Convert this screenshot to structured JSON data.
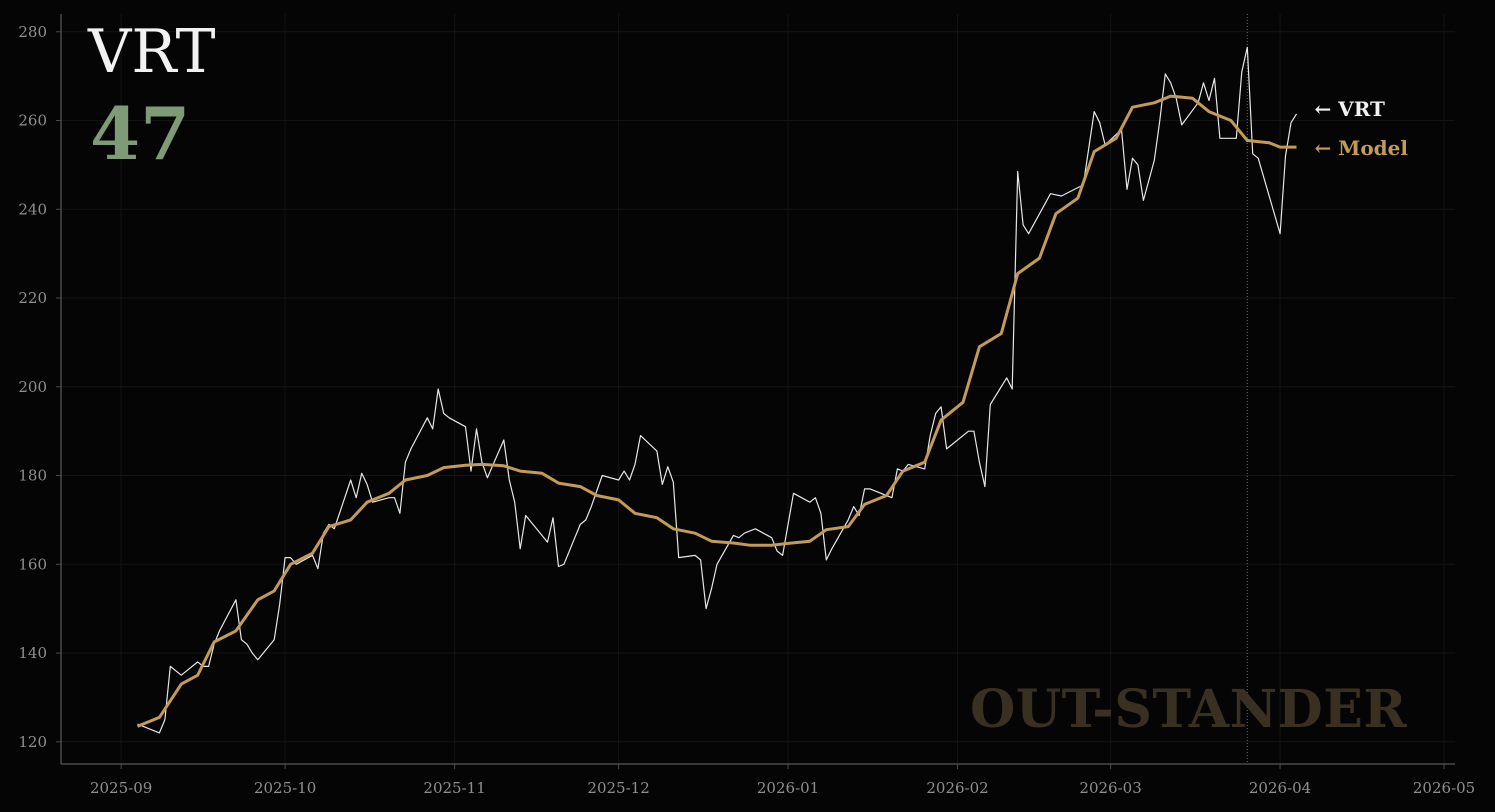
{
  "header": {
    "ticker": "VRT",
    "score": "47"
  },
  "watermark": "OUT-STANDER",
  "colors": {
    "background": "#050505",
    "price": "#e6e6e6",
    "model": "#c49a58",
    "score": "#7f9a76",
    "watermark": "#3a3022",
    "axis": "#4a4a4a",
    "grid": "#141414",
    "tick_text": "#8f8f8f"
  },
  "chart_data": {
    "type": "line",
    "title": "",
    "xlabel": "",
    "ylabel": "",
    "grid": true,
    "ylim": [
      115,
      284
    ],
    "xlim": [
      "2025-08-21",
      "2026-05-03"
    ],
    "x_ticks": [
      "2025-09",
      "2025-10",
      "2025-11",
      "2025-12",
      "2026-01",
      "2026-02",
      "2026-03",
      "2026-04",
      "2026-05"
    ],
    "y_ticks": [
      120,
      140,
      160,
      180,
      200,
      220,
      240,
      260,
      280
    ],
    "marker_date": "2026-03-26",
    "series": [
      {
        "name": "VRT",
        "label": "← VRT",
        "points": [
          [
            "2025-09-04",
            124
          ],
          [
            "2025-09-08",
            122
          ],
          [
            "2025-09-09",
            125
          ],
          [
            "2025-09-10",
            137
          ],
          [
            "2025-09-12",
            135
          ],
          [
            "2025-09-15",
            138
          ],
          [
            "2025-09-16",
            137
          ],
          [
            "2025-09-17",
            137
          ],
          [
            "2025-09-18",
            142
          ],
          [
            "2025-09-19",
            145
          ],
          [
            "2025-09-22",
            152
          ],
          [
            "2025-09-23",
            143
          ],
          [
            "2025-09-24",
            142
          ],
          [
            "2025-09-25",
            140
          ],
          [
            "2025-09-26",
            138.5
          ],
          [
            "2025-09-29",
            143
          ],
          [
            "2025-09-30",
            151
          ],
          [
            "2025-10-01",
            161.5
          ],
          [
            "2025-10-02",
            161.5
          ],
          [
            "2025-10-03",
            160
          ],
          [
            "2025-10-06",
            162
          ],
          [
            "2025-10-07",
            159
          ],
          [
            "2025-10-08",
            167
          ],
          [
            "2025-10-09",
            169
          ],
          [
            "2025-10-10",
            168
          ],
          [
            "2025-10-13",
            179
          ],
          [
            "2025-10-14",
            175
          ],
          [
            "2025-10-15",
            180.5
          ],
          [
            "2025-10-16",
            178
          ],
          [
            "2025-10-17",
            174
          ],
          [
            "2025-10-20",
            175
          ],
          [
            "2025-10-21",
            175
          ],
          [
            "2025-10-22",
            171.5
          ],
          [
            "2025-10-23",
            183
          ],
          [
            "2025-10-24",
            186
          ],
          [
            "2025-10-27",
            193
          ],
          [
            "2025-10-28",
            190.5
          ],
          [
            "2025-10-29",
            199.5
          ],
          [
            "2025-10-30",
            194
          ],
          [
            "2025-10-31",
            193
          ],
          [
            "2025-11-03",
            191
          ],
          [
            "2025-11-04",
            181
          ],
          [
            "2025-11-05",
            190.5
          ],
          [
            "2025-11-06",
            183
          ],
          [
            "2025-11-07",
            179.5
          ],
          [
            "2025-11-10",
            188
          ],
          [
            "2025-11-11",
            179
          ],
          [
            "2025-11-12",
            174
          ],
          [
            "2025-11-13",
            163.5
          ],
          [
            "2025-11-14",
            171
          ],
          [
            "2025-11-18",
            165
          ],
          [
            "2025-11-19",
            170.5
          ],
          [
            "2025-11-20",
            159.5
          ],
          [
            "2025-11-21",
            160
          ],
          [
            "2025-11-24",
            169
          ],
          [
            "2025-11-25",
            170
          ],
          [
            "2025-11-26",
            173
          ],
          [
            "2025-11-28",
            180
          ],
          [
            "2025-12-01",
            179
          ],
          [
            "2025-12-02",
            181
          ],
          [
            "2025-12-03",
            179
          ],
          [
            "2025-12-04",
            182.5
          ],
          [
            "2025-12-05",
            189
          ],
          [
            "2025-12-08",
            185.5
          ],
          [
            "2025-12-09",
            178
          ],
          [
            "2025-12-10",
            182
          ],
          [
            "2025-12-11",
            178.5
          ],
          [
            "2025-12-12",
            161.5
          ],
          [
            "2025-12-15",
            162
          ],
          [
            "2025-12-16",
            161
          ],
          [
            "2025-12-17",
            150
          ],
          [
            "2025-12-18",
            154.5
          ],
          [
            "2025-12-19",
            160
          ],
          [
            "2025-12-22",
            166.5
          ],
          [
            "2025-12-23",
            166
          ],
          [
            "2025-12-24",
            167
          ],
          [
            "2025-12-26",
            168
          ],
          [
            "2025-12-29",
            166
          ],
          [
            "2025-12-30",
            163
          ],
          [
            "2025-12-31",
            162
          ],
          [
            "2026-01-02",
            176
          ],
          [
            "2026-01-05",
            174
          ],
          [
            "2026-01-06",
            175
          ],
          [
            "2026-01-07",
            171.5
          ],
          [
            "2026-01-08",
            161
          ],
          [
            "2026-01-09",
            163.5
          ],
          [
            "2026-01-12",
            170
          ],
          [
            "2026-01-13",
            173
          ],
          [
            "2026-01-14",
            171
          ],
          [
            "2026-01-15",
            177
          ],
          [
            "2026-01-16",
            177
          ],
          [
            "2026-01-20",
            175
          ],
          [
            "2026-01-21",
            181.5
          ],
          [
            "2026-01-22",
            181
          ],
          [
            "2026-01-23",
            182.5
          ],
          [
            "2026-01-26",
            181.5
          ],
          [
            "2026-01-27",
            189
          ],
          [
            "2026-01-28",
            194
          ],
          [
            "2026-01-29",
            195.5
          ],
          [
            "2026-01-30",
            186
          ],
          [
            "2026-02-03",
            190
          ],
          [
            "2026-02-04",
            190
          ],
          [
            "2026-02-05",
            183
          ],
          [
            "2026-02-06",
            177.5
          ],
          [
            "2026-02-07",
            196
          ],
          [
            "2026-02-10",
            202
          ],
          [
            "2026-02-11",
            199.5
          ],
          [
            "2026-02-12",
            248.5
          ],
          [
            "2026-02-13",
            236.5
          ],
          [
            "2026-02-14",
            234.5
          ],
          [
            "2026-02-18",
            243.5
          ],
          [
            "2026-02-20",
            243
          ],
          [
            "2026-02-24",
            245.5
          ],
          [
            "2026-02-26",
            262
          ],
          [
            "2026-02-27",
            259.5
          ],
          [
            "2026-02-28",
            254.5
          ],
          [
            "2026-03-03",
            258
          ],
          [
            "2026-03-04",
            244.5
          ],
          [
            "2026-03-05",
            251.5
          ],
          [
            "2026-03-06",
            250
          ],
          [
            "2026-03-07",
            242
          ],
          [
            "2026-03-09",
            251
          ],
          [
            "2026-03-10",
            260
          ],
          [
            "2026-03-11",
            270.5
          ],
          [
            "2026-03-12",
            268.5
          ],
          [
            "2026-03-13",
            265
          ],
          [
            "2026-03-14",
            259
          ],
          [
            "2026-03-17",
            264
          ],
          [
            "2026-03-18",
            268.5
          ],
          [
            "2026-03-19",
            264.5
          ],
          [
            "2026-03-20",
            269.5
          ],
          [
            "2026-03-21",
            256
          ],
          [
            "2026-03-24",
            256
          ],
          [
            "2026-03-25",
            271
          ],
          [
            "2026-03-26",
            276.5
          ],
          [
            "2026-03-27",
            252.5
          ],
          [
            "2026-03-28",
            251.5
          ],
          [
            "2026-04-01",
            234.5
          ],
          [
            "2026-04-02",
            252
          ],
          [
            "2026-04-03",
            259.5
          ],
          [
            "2026-04-04",
            261.5
          ]
        ]
      },
      {
        "name": "Model",
        "label": "← Model",
        "points": [
          [
            "2025-09-04",
            123.5
          ],
          [
            "2025-09-08",
            125.5
          ],
          [
            "2025-09-12",
            133
          ],
          [
            "2025-09-15",
            135
          ],
          [
            "2025-09-18",
            142.5
          ],
          [
            "2025-09-22",
            145
          ],
          [
            "2025-09-26",
            152
          ],
          [
            "2025-09-29",
            154
          ],
          [
            "2025-10-02",
            160
          ],
          [
            "2025-10-06",
            162.5
          ],
          [
            "2025-10-09",
            168.5
          ],
          [
            "2025-10-13",
            170
          ],
          [
            "2025-10-16",
            174
          ],
          [
            "2025-10-20",
            176
          ],
          [
            "2025-10-23",
            179
          ],
          [
            "2025-10-27",
            180
          ],
          [
            "2025-10-30",
            181.8
          ],
          [
            "2025-11-03",
            182.3
          ],
          [
            "2025-11-06",
            182.5
          ],
          [
            "2025-11-10",
            182.2
          ],
          [
            "2025-11-13",
            181
          ],
          [
            "2025-11-17",
            180.5
          ],
          [
            "2025-11-20",
            178.3
          ],
          [
            "2025-11-24",
            177.5
          ],
          [
            "2025-11-27",
            175.5
          ],
          [
            "2025-12-01",
            174.5
          ],
          [
            "2025-12-04",
            171.5
          ],
          [
            "2025-12-08",
            170.5
          ],
          [
            "2025-12-11",
            168
          ],
          [
            "2025-12-15",
            167
          ],
          [
            "2025-12-18",
            165.2
          ],
          [
            "2025-12-22",
            164.8
          ],
          [
            "2025-12-25",
            164.3
          ],
          [
            "2025-12-29",
            164.3
          ],
          [
            "2026-01-01",
            164.7
          ],
          [
            "2026-01-05",
            165.2
          ],
          [
            "2026-01-08",
            167.8
          ],
          [
            "2026-01-12",
            168.5
          ],
          [
            "2026-01-15",
            173.5
          ],
          [
            "2026-01-19",
            175.5
          ],
          [
            "2026-01-22",
            181
          ],
          [
            "2026-01-26",
            183
          ],
          [
            "2026-01-29",
            192.5
          ],
          [
            "2026-02-02",
            196.5
          ],
          [
            "2026-02-05",
            209
          ],
          [
            "2026-02-09",
            212
          ],
          [
            "2026-02-12",
            225.5
          ],
          [
            "2026-02-16",
            229
          ],
          [
            "2026-02-19",
            239
          ],
          [
            "2026-02-23",
            242.5
          ],
          [
            "2026-02-26",
            253
          ],
          [
            "2026-03-02",
            256
          ],
          [
            "2026-03-05",
            263
          ],
          [
            "2026-03-09",
            264
          ],
          [
            "2026-03-12",
            265.5
          ],
          [
            "2026-03-16",
            265
          ],
          [
            "2026-03-19",
            262
          ],
          [
            "2026-03-23",
            260
          ],
          [
            "2026-03-26",
            255.5
          ],
          [
            "2026-03-30",
            255
          ],
          [
            "2026-04-01",
            254
          ],
          [
            "2026-04-04",
            254
          ]
        ]
      }
    ]
  }
}
